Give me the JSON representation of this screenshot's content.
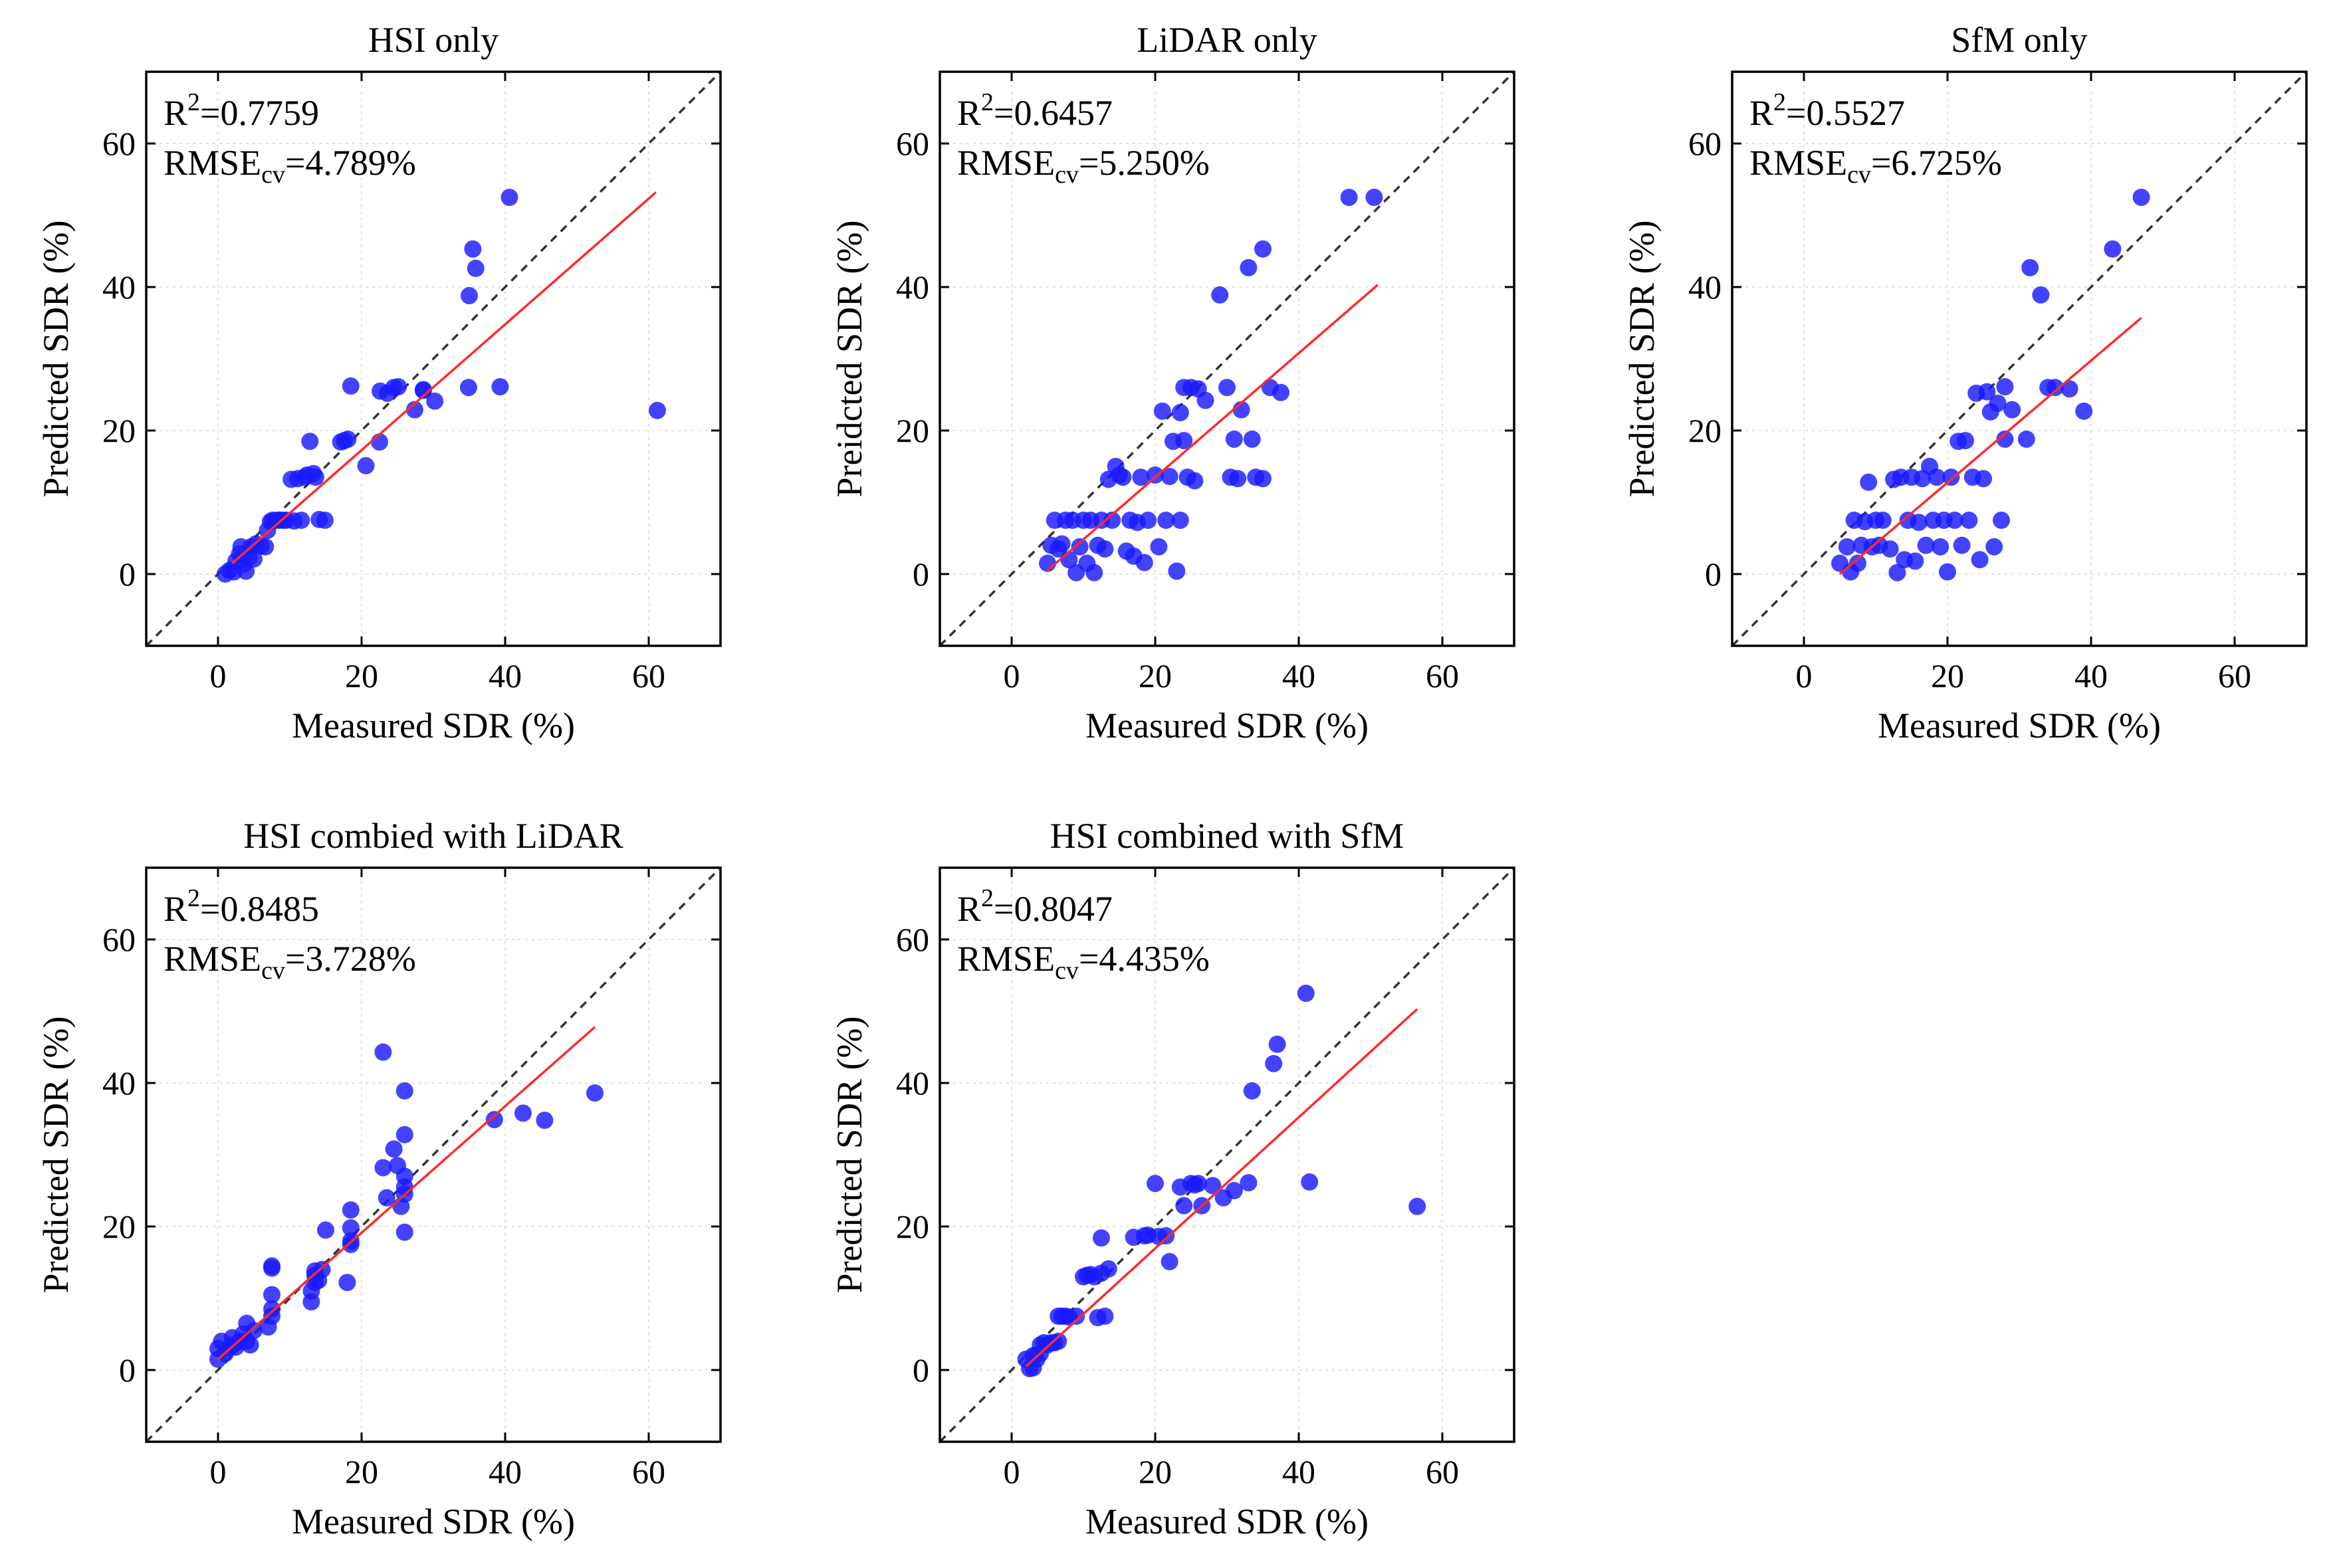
{
  "figure": {
    "style": {
      "point_color": "#1a1aff",
      "fit_color": "#ff2a2a",
      "diagonal_color": "#333333",
      "grid_color": "#e0e0e0",
      "grid_style": "dotted",
      "grid": true,
      "legend": "none"
    }
  },
  "chart_data": [
    {
      "type": "scatter",
      "title": "HSI only",
      "xlabel": "Measured SDR (%)",
      "ylabel": "Predicted SDR (%)",
      "xlim": [
        -10,
        70
      ],
      "ylim": [
        -10,
        70
      ],
      "xticks": [
        0,
        20,
        40,
        60
      ],
      "yticks": [
        0,
        20,
        40,
        60
      ],
      "stats": {
        "r2_label": "R",
        "r2_sup": "2",
        "r2_value": "=0.7759",
        "rmse_label": "RMSE",
        "rmse_sub": "cv",
        "rmse_value": "=4.789%"
      },
      "fit_line": {
        "x": [
          2,
          61
        ],
        "y": [
          1.5,
          53.2
        ]
      },
      "diagonal": {
        "x": [
          -10,
          70
        ],
        "y": [
          -10,
          70
        ]
      },
      "points": [
        [
          1,
          0
        ],
        [
          1.6,
          0.5
        ],
        [
          2.2,
          0.3
        ],
        [
          2.5,
          1.8
        ],
        [
          3,
          2.8
        ],
        [
          3.2,
          3.8
        ],
        [
          3.6,
          1.4
        ],
        [
          3.9,
          0.4
        ],
        [
          4.3,
          2.3
        ],
        [
          4.6,
          3.8
        ],
        [
          5,
          2.1
        ],
        [
          5.3,
          4.2
        ],
        [
          6,
          3.9
        ],
        [
          6.6,
          3.8
        ],
        [
          6.9,
          6.1
        ],
        [
          7.3,
          7.3
        ],
        [
          7.6,
          7.5
        ],
        [
          8.1,
          7.5
        ],
        [
          8.6,
          7.5
        ],
        [
          9.1,
          7.5
        ],
        [
          9.5,
          7.5
        ],
        [
          10.2,
          13.2
        ],
        [
          10.6,
          7.4
        ],
        [
          11.1,
          13.3
        ],
        [
          11.6,
          7.5
        ],
        [
          12.1,
          13.5
        ],
        [
          12.4,
          13.8
        ],
        [
          12.8,
          18.5
        ],
        [
          13.3,
          14
        ],
        [
          13.6,
          13.5
        ],
        [
          14.1,
          7.6
        ],
        [
          14.9,
          7.5
        ],
        [
          17.1,
          18.4
        ],
        [
          17.6,
          18.6
        ],
        [
          18.1,
          18.8
        ],
        [
          18.5,
          26.2
        ],
        [
          20.6,
          15.1
        ],
        [
          22.5,
          18.4
        ],
        [
          22.6,
          25.5
        ],
        [
          23.6,
          25.2
        ],
        [
          24.5,
          26
        ],
        [
          25.1,
          26.1
        ],
        [
          27.4,
          22.9
        ],
        [
          28.6,
          25.6
        ],
        [
          28.6,
          25.7
        ],
        [
          30.2,
          24.1
        ],
        [
          34.9,
          26
        ],
        [
          35,
          38.8
        ],
        [
          35.5,
          45.3
        ],
        [
          35.9,
          42.6
        ],
        [
          39.3,
          26.1
        ],
        [
          40.6,
          52.5
        ],
        [
          61.2,
          22.8
        ]
      ]
    },
    {
      "type": "scatter",
      "title": "LiDAR only",
      "xlabel": "Measured SDR (%)",
      "ylabel": "Preidcted SDR (%)",
      "xlim": [
        -10,
        70
      ],
      "ylim": [
        -10,
        70
      ],
      "xticks": [
        0,
        20,
        40,
        60
      ],
      "yticks": [
        0,
        20,
        40,
        60
      ],
      "stats": {
        "r2_label": "R",
        "r2_sup": "2",
        "r2_value": "=0.6457",
        "rmse_label": "RMSE",
        "rmse_sub": "cv",
        "rmse_value": "=5.250%"
      },
      "fit_line": {
        "x": [
          5,
          51
        ],
        "y": [
          0.5,
          40.3
        ]
      },
      "diagonal": {
        "x": [
          -10,
          70
        ],
        "y": [
          -10,
          70
        ]
      },
      "points": [
        [
          5,
          1.5
        ],
        [
          5.5,
          4
        ],
        [
          6,
          7.5
        ],
        [
          6.5,
          3.5
        ],
        [
          7,
          4.2
        ],
        [
          7.5,
          7.5
        ],
        [
          8,
          2
        ],
        [
          8.5,
          7.5
        ],
        [
          9,
          0.2
        ],
        [
          9.5,
          3.8
        ],
        [
          10,
          7.5
        ],
        [
          10.5,
          1.5
        ],
        [
          11,
          7.5
        ],
        [
          11.5,
          0.2
        ],
        [
          12,
          4
        ],
        [
          12.5,
          7.5
        ],
        [
          13,
          3.5
        ],
        [
          13.5,
          13.2
        ],
        [
          14,
          7.5
        ],
        [
          14.5,
          15
        ],
        [
          15,
          13.8
        ],
        [
          15.5,
          13.5
        ],
        [
          16,
          3.2
        ],
        [
          16.5,
          7.5
        ],
        [
          17,
          2.5
        ],
        [
          17.5,
          7.2
        ],
        [
          18,
          13.5
        ],
        [
          18.5,
          1.6
        ],
        [
          19,
          7.5
        ],
        [
          20,
          13.8
        ],
        [
          20.5,
          3.8
        ],
        [
          21,
          22.7
        ],
        [
          21.5,
          7.5
        ],
        [
          22,
          13.6
        ],
        [
          22.5,
          18.5
        ],
        [
          23,
          0.4
        ],
        [
          23.5,
          7.5
        ],
        [
          23.5,
          22.5
        ],
        [
          24,
          18.6
        ],
        [
          24,
          26
        ],
        [
          24.5,
          13.5
        ],
        [
          25,
          26
        ],
        [
          25.5,
          13
        ],
        [
          26,
          25.8
        ],
        [
          27,
          24.2
        ],
        [
          29,
          38.9
        ],
        [
          30,
          26
        ],
        [
          30.5,
          13.5
        ],
        [
          31,
          18.8
        ],
        [
          31.5,
          13.3
        ],
        [
          32,
          22.9
        ],
        [
          33,
          42.7
        ],
        [
          33.5,
          18.8
        ],
        [
          34,
          13.5
        ],
        [
          35,
          13.3
        ],
        [
          35,
          45.3
        ],
        [
          36,
          26
        ],
        [
          37.5,
          25.3
        ],
        [
          47,
          52.5
        ],
        [
          50.5,
          52.5
        ]
      ]
    },
    {
      "type": "scatter",
      "title": "SfM only",
      "xlabel": "Measured SDR (%)",
      "ylabel": "Predicted SDR (%)",
      "xlim": [
        -10,
        70
      ],
      "ylim": [
        -10,
        70
      ],
      "xticks": [
        0,
        20,
        40,
        60
      ],
      "yticks": [
        0,
        20,
        40,
        60
      ],
      "stats": {
        "r2_label": "R",
        "r2_sup": "2",
        "r2_value": "=0.5527",
        "rmse_label": "RMSE",
        "rmse_sub": "cv",
        "rmse_value": "=6.725%"
      },
      "fit_line": {
        "x": [
          5,
          47
        ],
        "y": [
          0,
          35.7
        ]
      },
      "diagonal": {
        "x": [
          -10,
          70
        ],
        "y": [
          -10,
          70
        ]
      },
      "points": [
        [
          5,
          1.5
        ],
        [
          6,
          3.8
        ],
        [
          6.5,
          0.3
        ],
        [
          7,
          7.5
        ],
        [
          7.5,
          1.5
        ],
        [
          8,
          4
        ],
        [
          8.5,
          7.3
        ],
        [
          9,
          12.8
        ],
        [
          9.5,
          3.8
        ],
        [
          10,
          7.5
        ],
        [
          10.5,
          4
        ],
        [
          11,
          7.5
        ],
        [
          12,
          3.5
        ],
        [
          12.5,
          13.2
        ],
        [
          13,
          0.2
        ],
        [
          13.5,
          13.5
        ],
        [
          14,
          2
        ],
        [
          14.5,
          7.5
        ],
        [
          15,
          13.5
        ],
        [
          15.5,
          1.8
        ],
        [
          16,
          7.2
        ],
        [
          16.5,
          13.3
        ],
        [
          17,
          4
        ],
        [
          17.5,
          15
        ],
        [
          18,
          7.5
        ],
        [
          18.5,
          13.5
        ],
        [
          19,
          3.8
        ],
        [
          19.5,
          7.5
        ],
        [
          20,
          0.3
        ],
        [
          20.5,
          13.5
        ],
        [
          21,
          7.5
        ],
        [
          21.5,
          18.5
        ],
        [
          22,
          4
        ],
        [
          22.5,
          18.6
        ],
        [
          23,
          7.5
        ],
        [
          23.5,
          13.5
        ],
        [
          24,
          25.2
        ],
        [
          24.5,
          2
        ],
        [
          25,
          13.3
        ],
        [
          25.5,
          25.4
        ],
        [
          26,
          22.6
        ],
        [
          26.5,
          3.8
        ],
        [
          27,
          23.8
        ],
        [
          27.5,
          7.5
        ],
        [
          28,
          18.8
        ],
        [
          28,
          26.1
        ],
        [
          29,
          22.9
        ],
        [
          31,
          18.8
        ],
        [
          31.5,
          42.7
        ],
        [
          33,
          38.9
        ],
        [
          34,
          26
        ],
        [
          35,
          26
        ],
        [
          37,
          25.8
        ],
        [
          39,
          22.7
        ],
        [
          43,
          45.3
        ],
        [
          47,
          52.5
        ]
      ]
    },
    {
      "type": "scatter",
      "title": "HSI combied with LiDAR",
      "xlabel": "Measured SDR (%)",
      "ylabel": "Predicted SDR (%)",
      "xlim": [
        -10,
        70
      ],
      "ylim": [
        -10,
        70
      ],
      "xticks": [
        0,
        20,
        40,
        60
      ],
      "yticks": [
        0,
        20,
        40,
        60
      ],
      "stats": {
        "r2_label": "R",
        "r2_sup": "2",
        "r2_value": "=0.8485",
        "rmse_label": "RMSE",
        "rmse_sub": "cv",
        "rmse_value": "=3.728%"
      },
      "fit_line": {
        "x": [
          0,
          52.5
        ],
        "y": [
          1.5,
          47.8
        ]
      },
      "diagonal": {
        "x": [
          -10,
          70
        ],
        "y": [
          -10,
          70
        ]
      },
      "points": [
        [
          0,
          1.5
        ],
        [
          0,
          3
        ],
        [
          0.5,
          4
        ],
        [
          1,
          2.3
        ],
        [
          1.5,
          3
        ],
        [
          2,
          3.5
        ],
        [
          2,
          4.5
        ],
        [
          2.5,
          3.2
        ],
        [
          3,
          4
        ],
        [
          3.5,
          5
        ],
        [
          4,
          6.5
        ],
        [
          4,
          4
        ],
        [
          4.5,
          3.5
        ],
        [
          5,
          5.5
        ],
        [
          7,
          6
        ],
        [
          7.5,
          7.5
        ],
        [
          7.5,
          8.5
        ],
        [
          7.5,
          10.5
        ],
        [
          7.5,
          14.2
        ],
        [
          7.5,
          14.5
        ],
        [
          13,
          9.5
        ],
        [
          13,
          11
        ],
        [
          13.5,
          12.2
        ],
        [
          13.5,
          13.2
        ],
        [
          13.5,
          13.8
        ],
        [
          14,
          12.5
        ],
        [
          14.5,
          14
        ],
        [
          15,
          19.5
        ],
        [
          18,
          12.2
        ],
        [
          18.5,
          17.5
        ],
        [
          18.5,
          18
        ],
        [
          18.5,
          19.8
        ],
        [
          18.5,
          22.3
        ],
        [
          23,
          44.3
        ],
        [
          23,
          28.2
        ],
        [
          23.5,
          24
        ],
        [
          24.5,
          30.8
        ],
        [
          25,
          28.5
        ],
        [
          25.5,
          22.8
        ],
        [
          26,
          24.5
        ],
        [
          26,
          25.5
        ],
        [
          26,
          27
        ],
        [
          26,
          19.2
        ],
        [
          26,
          32.8
        ],
        [
          26,
          38.9
        ],
        [
          38.5,
          34.9
        ],
        [
          42.5,
          35.8
        ],
        [
          45.5,
          34.8
        ],
        [
          52.5,
          38.6
        ]
      ]
    },
    {
      "type": "scatter",
      "title": "HSI combined with SfM",
      "xlabel": "Measured SDR (%)",
      "ylabel": "Predicted SDR (%)",
      "xlim": [
        -10,
        70
      ],
      "ylim": [
        -10,
        70
      ],
      "xticks": [
        0,
        20,
        40,
        60
      ],
      "yticks": [
        0,
        20,
        40,
        60
      ],
      "stats": {
        "r2_label": "R",
        "r2_sup": "2",
        "r2_value": "=0.8047",
        "rmse_label": "RMSE",
        "rmse_sub": "cv",
        "rmse_value": "=4.435%"
      },
      "fit_line": {
        "x": [
          2,
          56.5
        ],
        "y": [
          0.5,
          50.3
        ]
      },
      "diagonal": {
        "x": [
          -10,
          70
        ],
        "y": [
          -10,
          70
        ]
      },
      "points": [
        [
          2,
          1.5
        ],
        [
          2.5,
          0.2
        ],
        [
          3,
          0.3
        ],
        [
          3,
          2
        ],
        [
          3.5,
          1.5
        ],
        [
          4,
          3.5
        ],
        [
          4,
          2.3
        ],
        [
          4.5,
          3.8
        ],
        [
          5,
          3.5
        ],
        [
          5.5,
          3.8
        ],
        [
          6,
          3.8
        ],
        [
          6.5,
          4
        ],
        [
          6.5,
          7.5
        ],
        [
          7,
          7.5
        ],
        [
          7.5,
          7.5
        ],
        [
          8,
          7.4
        ],
        [
          9,
          7.5
        ],
        [
          10,
          13
        ],
        [
          10.5,
          13.2
        ],
        [
          11,
          13.3
        ],
        [
          11.5,
          13
        ],
        [
          12,
          7.3
        ],
        [
          12.5,
          13.5
        ],
        [
          12.5,
          18.4
        ],
        [
          13,
          7.5
        ],
        [
          13.5,
          14.1
        ],
        [
          17,
          18.5
        ],
        [
          18.5,
          18.7
        ],
        [
          19,
          18.8
        ],
        [
          20,
          26
        ],
        [
          20.5,
          18.6
        ],
        [
          21.5,
          18.7
        ],
        [
          22,
          15.1
        ],
        [
          23.5,
          25.5
        ],
        [
          24,
          22.9
        ],
        [
          25,
          26
        ],
        [
          25.5,
          25.8
        ],
        [
          26,
          26
        ],
        [
          26.5,
          22.9
        ],
        [
          28,
          25.7
        ],
        [
          29.5,
          24
        ],
        [
          31,
          25
        ],
        [
          33,
          26.1
        ],
        [
          33.5,
          38.9
        ],
        [
          36.5,
          42.7
        ],
        [
          37,
          45.4
        ],
        [
          41,
          52.5
        ],
        [
          41.5,
          26.2
        ],
        [
          56.5,
          22.8
        ]
      ]
    }
  ]
}
